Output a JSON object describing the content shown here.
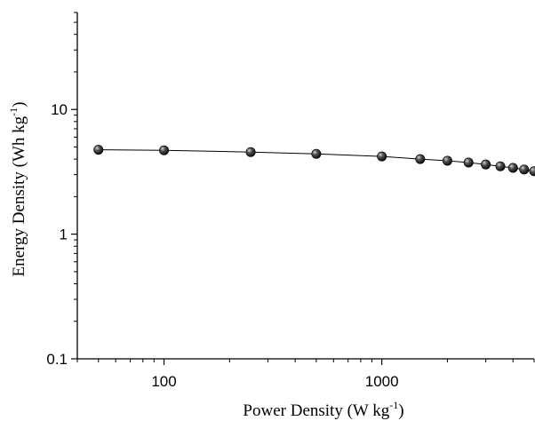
{
  "chart_data": {
    "type": "scatter",
    "title": "",
    "xlabel": {
      "main": "Power Density (W kg",
      "sup": "-1",
      "end": ")"
    },
    "ylabel": {
      "main": "Energy Density (Wh kg",
      "sup": "-1",
      "end": ")"
    },
    "xscale": "log",
    "yscale": "log",
    "xlim": [
      40,
      5000
    ],
    "ylim": [
      0.1,
      60
    ],
    "grid": false,
    "legend": "none",
    "x_ticks": [
      {
        "value": 100,
        "label": "100"
      },
      {
        "value": 1000,
        "label": "1000"
      }
    ],
    "y_ticks": [
      {
        "value": 0.1,
        "label": "0.1"
      },
      {
        "value": 1,
        "label": "1"
      },
      {
        "value": 10,
        "label": "10"
      }
    ],
    "series": [
      {
        "marker": "sphere",
        "line": "solid",
        "color": "#000000",
        "x": [
          50,
          100,
          250,
          500,
          1000,
          1500,
          2000,
          2500,
          3000,
          3500,
          4000,
          4500,
          5000
        ],
        "y": [
          4.75,
          4.7,
          4.55,
          4.4,
          4.2,
          4.0,
          3.88,
          3.75,
          3.62,
          3.5,
          3.4,
          3.3,
          3.2
        ]
      }
    ]
  }
}
